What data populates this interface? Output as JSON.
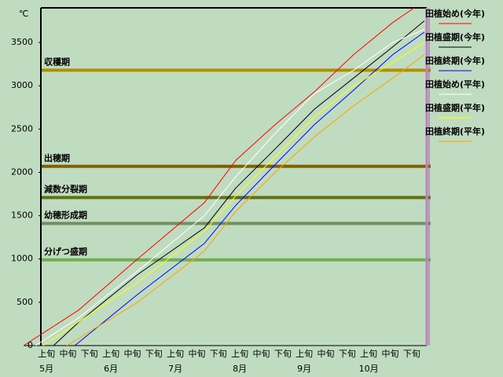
{
  "chart_data": {
    "type": "line",
    "y_unit": "℃",
    "categories": [
      "上旬",
      "中旬",
      "下旬",
      "上旬",
      "中旬",
      "下旬",
      "上旬",
      "中旬",
      "下旬",
      "上旬",
      "中旬",
      "下旬",
      "上旬",
      "中旬",
      "下旬",
      "上旬",
      "中旬",
      "下旬"
    ],
    "months": [
      "5月",
      "6月",
      "7月",
      "8月",
      "9月",
      "10月"
    ],
    "xlim": [
      -0.26,
      17.7
    ],
    "ylim": [
      0,
      3900
    ],
    "yticks": [
      0,
      500,
      1000,
      1500,
      2000,
      2500,
      3000,
      3500
    ],
    "stages": [
      {
        "name": "収穫期",
        "value": 3180,
        "color": "#b09000"
      },
      {
        "name": "出穂期",
        "value": 2070,
        "color": "#806000"
      },
      {
        "name": "減数分裂期",
        "value": 1710,
        "color": "#607010"
      },
      {
        "name": "幼穂形成期",
        "value": 1410,
        "color": "#709060"
      },
      {
        "name": "分げつ盛期",
        "value": 990,
        "color": "#70b050"
      }
    ],
    "series": [
      {
        "name": "田植始め(今年)",
        "color": "#ff0000",
        "x": [
          -1.06,
          1.5,
          4.24,
          7.35,
          8.81,
          10.64,
          12.47,
          14.3,
          16.12,
          17.11
        ],
        "values": [
          0,
          410,
          1000,
          1650,
          2140,
          2550,
          2930,
          3360,
          3730,
          3900
        ]
      },
      {
        "name": "田植盛期(今年)",
        "color": "#000000",
        "x": [
          0.33,
          1.5,
          4.24,
          7.35,
          8.81,
          10.64,
          12.47,
          14.3,
          16.12,
          17.59
        ],
        "values": [
          0,
          270,
          820,
          1360,
          1820,
          2270,
          2730,
          3090,
          3450,
          3750
        ]
      },
      {
        "name": "田植終期(今年)",
        "color": "#0000ff",
        "x": [
          1.32,
          4.24,
          7.35,
          8.81,
          10.64,
          12.47,
          14.3,
          16.12,
          17.59
        ],
        "values": [
          0,
          590,
          1180,
          1620,
          2090,
          2550,
          2950,
          3360,
          3620
        ]
      },
      {
        "name": "田植始め(平年)",
        "color": "#ffffff",
        "x": [
          -0.51,
          1.5,
          4.24,
          7.35,
          8.81,
          10.64,
          12.47,
          14.3,
          16.12,
          17.59
        ],
        "values": [
          0,
          320,
          860,
          1500,
          1950,
          2450,
          2910,
          3180,
          3500,
          3650
        ]
      },
      {
        "name": "田植盛期(平年)",
        "color": "#ffff00",
        "x": [
          -0.15,
          4.24,
          7.35,
          8.81,
          10.64,
          12.47,
          14.3,
          16.12,
          17.59
        ],
        "values": [
          0,
          730,
          1320,
          1730,
          2180,
          2640,
          3000,
          3270,
          3500
        ]
      },
      {
        "name": "田植終期(平年)",
        "color": "#ffa000",
        "x": [
          0.95,
          4.24,
          7.35,
          8.81,
          10.64,
          12.47,
          14.3,
          16.12,
          17.59
        ],
        "values": [
          0,
          500,
          1090,
          1550,
          2000,
          2410,
          2770,
          3090,
          3360
        ]
      }
    ]
  }
}
